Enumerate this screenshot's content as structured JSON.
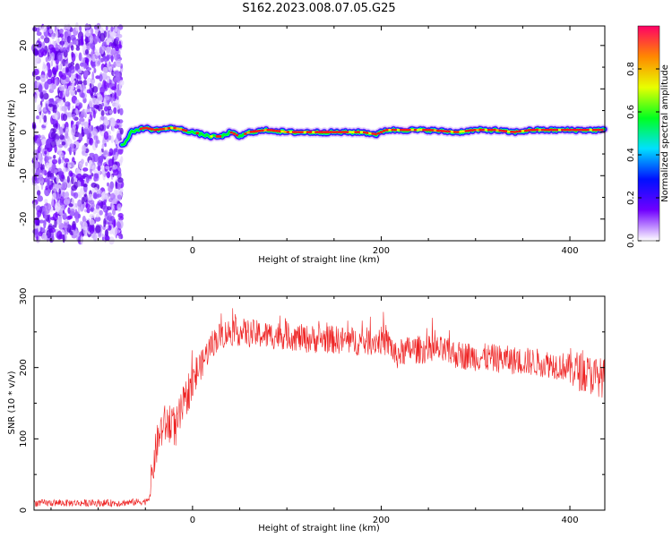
{
  "figure": {
    "title": "S162.2023.008.07.05.G25"
  },
  "chart_data": [
    {
      "type": "heatmap",
      "xlabel": "Height of straight line (km)",
      "ylabel": "Frequency (Hz)",
      "xlim": [
        -168,
        437
      ],
      "ylim": [
        -25,
        24.5
      ],
      "xticks": [
        0,
        200,
        400
      ],
      "yticks": [
        -20,
        -10,
        0,
        10,
        20
      ],
      "grid": false,
      "colorbar": {
        "label": "Normalized spectral amplitude",
        "range": [
          0,
          1
        ],
        "ticks": [
          "0.0",
          "0.2",
          "0.4",
          "0.6",
          "0.8"
        ],
        "colormap": [
          "#ffffff",
          "#7000ff",
          "#0010ff",
          "#00e0ff",
          "#00ff20",
          "#e8ff00",
          "#ff8800",
          "#ff0066"
        ]
      },
      "noise_region_x": [
        -168,
        -75
      ],
      "ridge": {
        "x": [
          -75,
          -70,
          -65,
          -60,
          -50,
          -40,
          -20,
          0,
          20,
          30,
          40,
          50,
          60,
          80,
          100,
          150,
          180,
          195,
          205,
          220,
          250,
          280,
          300,
          320,
          340,
          360,
          400,
          437
        ],
        "y": [
          -3,
          -2,
          0,
          0.5,
          1,
          0.5,
          1,
          0,
          -1,
          -1,
          0,
          -1,
          0,
          0.5,
          0,
          0,
          0,
          -0.5,
          0.5,
          0.5,
          0.5,
          0,
          0.5,
          0.5,
          0,
          0.5,
          0.5,
          0.5
        ]
      }
    },
    {
      "type": "line",
      "xlabel": "Height of straight line (km)",
      "ylabel": "SNR (10 * v/v)",
      "xlim": [
        -168,
        437
      ],
      "ylim": [
        0,
        300
      ],
      "xticks": [
        0,
        200,
        400
      ],
      "yticks": [
        0,
        100,
        200,
        300
      ],
      "grid": false,
      "series": [
        {
          "color": "#ee2222",
          "x": [
            -168,
            -120,
            -80,
            -50,
            -45,
            -42,
            -38,
            -34,
            -30,
            -26,
            -22,
            -18,
            -12,
            -8,
            -4,
            0,
            5,
            10,
            15,
            20,
            25,
            30,
            40,
            50,
            60,
            80,
            100,
            120,
            140,
            160,
            180,
            200,
            210,
            215,
            220,
            230,
            240,
            260,
            280,
            300,
            320,
            340,
            360,
            380,
            400,
            420,
            437
          ],
          "y": [
            10,
            10,
            10,
            12,
            20,
            60,
            90,
            110,
            120,
            120,
            130,
            110,
            140,
            150,
            170,
            175,
            195,
            205,
            220,
            232,
            240,
            245,
            250,
            250,
            248,
            245,
            245,
            240,
            240,
            238,
            236,
            238,
            232,
            215,
            220,
            225,
            225,
            225,
            218,
            215,
            213,
            210,
            208,
            205,
            200,
            190,
            185
          ]
        }
      ]
    }
  ]
}
